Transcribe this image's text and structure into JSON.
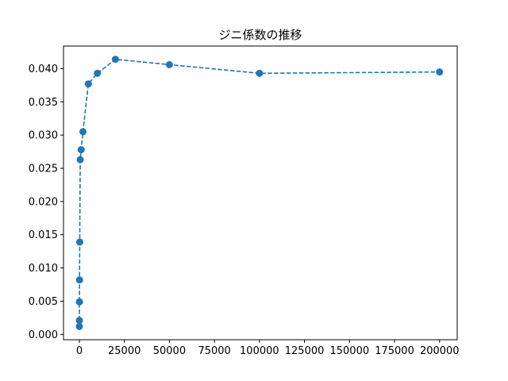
{
  "chart_data": {
    "type": "line",
    "title": "ジニ係数の推移",
    "xlabel": "",
    "ylabel": "",
    "xlim": [
      -8800,
      209800
    ],
    "ylim": [
      -0.0008,
      0.0434
    ],
    "x_ticks": [
      0,
      25000,
      50000,
      75000,
      100000,
      125000,
      150000,
      175000,
      200000
    ],
    "y_ticks": [
      0.0,
      0.005,
      0.01,
      0.015,
      0.02,
      0.025,
      0.03,
      0.035,
      0.04
    ],
    "x_tick_labels": [
      "0",
      "25000",
      "50000",
      "75000",
      "100000",
      "125000",
      "150000",
      "175000",
      "200000"
    ],
    "y_tick_labels": [
      "0.000",
      "0.005",
      "0.010",
      "0.015",
      "0.020",
      "0.025",
      "0.030",
      "0.035",
      "0.040"
    ],
    "grid": false,
    "legend": false,
    "series": [
      {
        "color": "#1f77b4",
        "line_style": "dashed",
        "marker": "circle",
        "x": [
          10,
          20,
          50,
          100,
          200,
          500,
          1000,
          2000,
          5000,
          10000,
          20000,
          50000,
          100000,
          200000
        ],
        "y": [
          0.0012,
          0.0021,
          0.0049,
          0.0082,
          0.0139,
          0.0263,
          0.0278,
          0.0305,
          0.0377,
          0.0393,
          0.0414,
          0.0406,
          0.0393,
          0.0395
        ]
      }
    ]
  }
}
